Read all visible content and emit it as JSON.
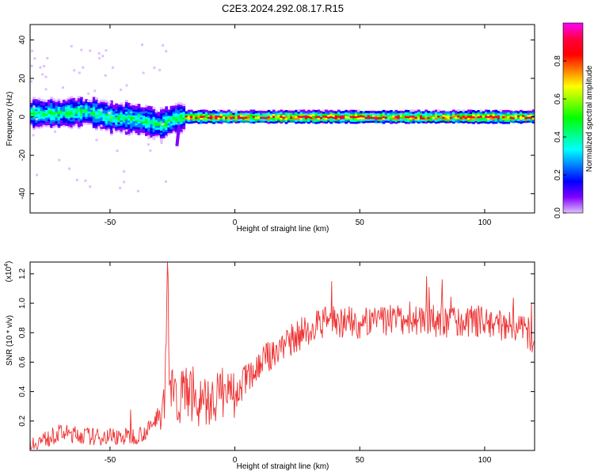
{
  "title": "C2E3.2024.292.08.17.R15",
  "chart_data": [
    {
      "type": "heatmap",
      "xlabel": "Height of straight line (km)",
      "ylabel": "Frequency (Hz)",
      "xlim": [
        -82,
        120
      ],
      "ylim": [
        -50,
        48
      ],
      "x_ticks": [
        -50,
        0,
        50,
        100
      ],
      "y_ticks": [
        -40,
        -20,
        0,
        20,
        40
      ],
      "grid": false,
      "colorbar": {
        "label": "Normalized spectral amplitude",
        "range": [
          0,
          1
        ],
        "ticks": [
          "0.0",
          "0.2",
          "0.4",
          "0.6",
          "0.8"
        ],
        "tick_values": [
          0,
          0.2,
          0.4,
          0.6,
          0.8
        ],
        "colormap": [
          "#ff00ff",
          "#ff0040",
          "#ff0000",
          "#ff8000",
          "#ffff00",
          "#80ff00",
          "#00ff00",
          "#00ff80",
          "#00ffff",
          "#0080ff",
          "#0000ff",
          "#8000ff",
          "#e0c0ff"
        ]
      },
      "ridge": [
        {
          "x": -82,
          "y": 2
        },
        {
          "x": -70,
          "y": 2
        },
        {
          "x": -60,
          "y": 3
        },
        {
          "x": -50,
          "y": 0
        },
        {
          "x": -40,
          "y": -1
        },
        {
          "x": -30,
          "y": -4
        },
        {
          "x": -25,
          "y": -1
        },
        {
          "x": -20,
          "y": 0
        },
        {
          "x": -10,
          "y": 0
        },
        {
          "x": 0,
          "y": 0
        },
        {
          "x": 50,
          "y": 0
        },
        {
          "x": 100,
          "y": 0
        },
        {
          "x": 120,
          "y": 0
        }
      ]
    },
    {
      "type": "line",
      "xlabel": "Height of straight line (km)",
      "ylabel": "SNR (10 * v/v)",
      "y_multiplier": "(x10",
      "y_multiplier_exp": "4",
      "y_multiplier_close": ")",
      "xlim": [
        -82,
        120
      ],
      "ylim": [
        0,
        1.28
      ],
      "x_ticks": [
        -50,
        0,
        50,
        100
      ],
      "y_ticks": [
        0.2,
        0.4,
        0.6,
        0.8,
        1.0,
        1.2
      ],
      "y_tick_labels": [
        "0.2",
        "0.4",
        "0.6",
        "0.8",
        "1.0",
        "1.2"
      ],
      "grid": false,
      "series": [
        {
          "color": "#ee3333",
          "x": [
            -82,
            -75,
            -70,
            -65,
            -60,
            -55,
            -50,
            -45,
            -40,
            -35,
            -32,
            -30,
            -29,
            -28,
            -27,
            -26,
            -25,
            -22,
            -20,
            -15,
            -10,
            -5,
            0,
            5,
            10,
            15,
            20,
            25,
            30,
            35,
            40,
            45,
            50,
            55,
            60,
            65,
            70,
            75,
            80,
            85,
            90,
            95,
            100,
            105,
            110,
            115,
            120
          ],
          "y": [
            0.04,
            0.08,
            0.12,
            0.11,
            0.1,
            0.09,
            0.1,
            0.09,
            0.1,
            0.13,
            0.2,
            0.28,
            0.35,
            0.4,
            1.25,
            0.4,
            0.38,
            0.36,
            0.4,
            0.34,
            0.33,
            0.4,
            0.35,
            0.5,
            0.58,
            0.66,
            0.72,
            0.78,
            0.83,
            0.86,
            0.88,
            0.87,
            0.86,
            0.87,
            0.88,
            0.89,
            0.87,
            0.9,
            0.88,
            0.87,
            0.86,
            0.89,
            0.87,
            0.86,
            0.85,
            0.84,
            0.73
          ]
        }
      ]
    }
  ]
}
